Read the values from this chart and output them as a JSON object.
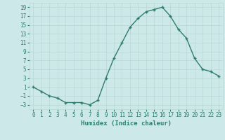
{
  "x": [
    0,
    1,
    2,
    3,
    4,
    5,
    6,
    7,
    8,
    9,
    10,
    11,
    12,
    13,
    14,
    15,
    16,
    17,
    18,
    19,
    20,
    21,
    22,
    23
  ],
  "y": [
    1,
    0,
    -1,
    -1.5,
    -2.5,
    -2.5,
    -2.5,
    -3,
    -2,
    3,
    7.5,
    11,
    14.5,
    16.5,
    18,
    18.5,
    19,
    17,
    14,
    12,
    7.5,
    5,
    4.5,
    3.5
  ],
  "line_color": "#2e7d6e",
  "marker_color": "#2e7d6e",
  "bg_color": "#cde8e8",
  "grid_color": "#b8d8d4",
  "xlabel": "Humidex (Indice chaleur)",
  "xlim": [
    -0.5,
    23.5
  ],
  "ylim": [
    -4,
    20
  ],
  "yticks": [
    -3,
    -1,
    1,
    3,
    5,
    7,
    9,
    11,
    13,
    15,
    17,
    19
  ],
  "font_color": "#2e7d6e",
  "linewidth": 1.0,
  "markersize": 2.5,
  "xlabel_fontsize": 6.5,
  "tick_fontsize": 5.5
}
